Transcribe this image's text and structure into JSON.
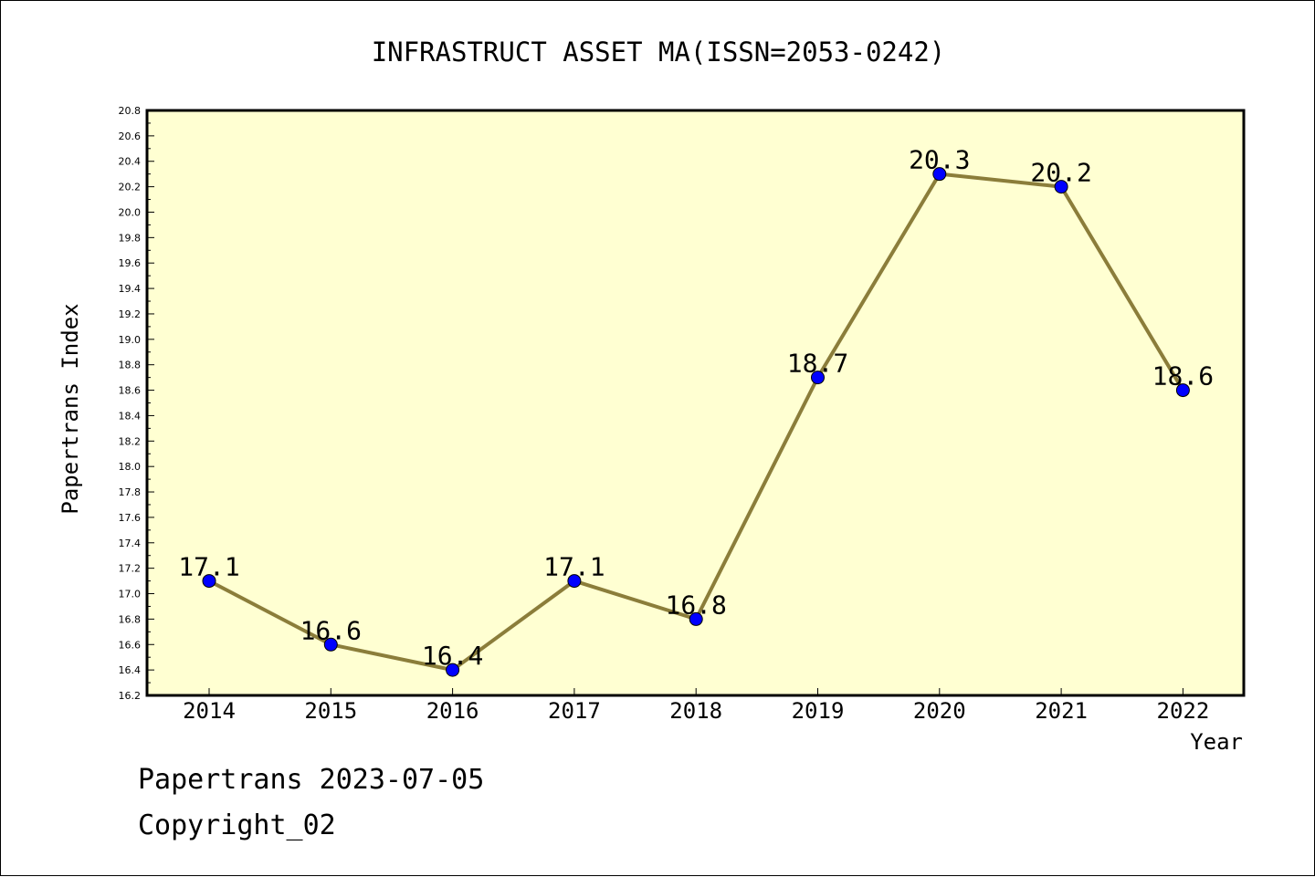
{
  "chart_data": {
    "type": "line",
    "title": "INFRASTRUCT ASSET MA(ISSN=2053-0242)",
    "xlabel": "Year",
    "ylabel": "Papertrans Index",
    "x": [
      "2014",
      "2015",
      "2016",
      "2017",
      "2018",
      "2019",
      "2020",
      "2021",
      "2022"
    ],
    "series": [
      {
        "values": [
          17.1,
          16.6,
          16.4,
          17.1,
          16.8,
          18.7,
          20.3,
          20.2,
          18.6
        ],
        "labels": [
          "17.1",
          "16.6",
          "16.4",
          "17.1",
          "16.8",
          "18.7",
          "20.3",
          "20.2",
          "18.6"
        ],
        "line_color": "#8b7d3a",
        "marker_color": "#0000ff"
      }
    ],
    "ylim": [
      16.2,
      20.8
    ],
    "y_ticks": [
      "16.2",
      "16.4",
      "16.6",
      "16.8",
      "17.0",
      "17.2",
      "17.4",
      "17.6",
      "17.8",
      "18.0",
      "18.2",
      "18.4",
      "18.6",
      "18.8",
      "19.0",
      "19.2",
      "19.4",
      "19.6",
      "19.8",
      "20.0",
      "20.2",
      "20.4",
      "20.6",
      "20.8"
    ],
    "grid": false,
    "legend": "none",
    "plot_background": "#ffffd2"
  },
  "footer": {
    "line1": "Papertrans 2023-07-05",
    "line2": "Copyright_02"
  }
}
